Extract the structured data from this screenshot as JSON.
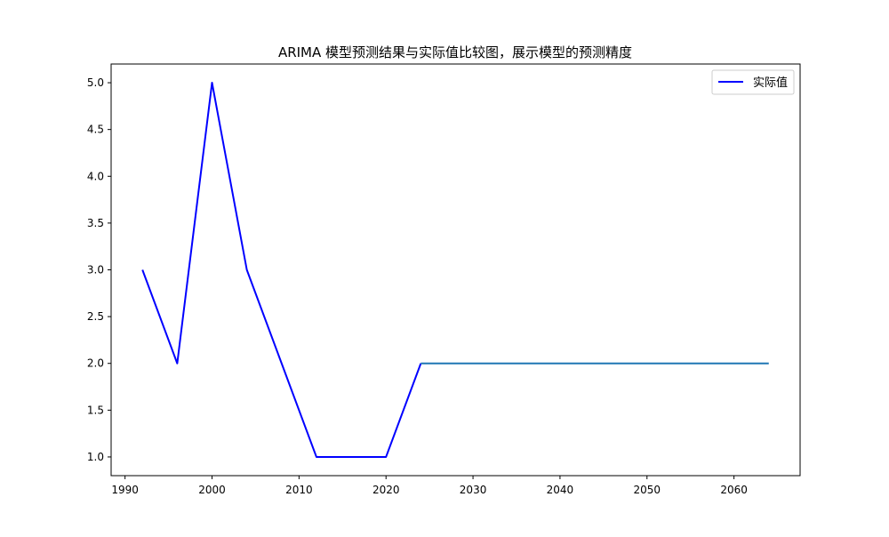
{
  "chart_data": {
    "type": "line",
    "title": "ARIMA 模型预测结果与实际值比较图，展示模型的预测精度",
    "xlabel": "",
    "ylabel": "",
    "xlim": [
      1988.4,
      2067.6
    ],
    "ylim": [
      0.8,
      5.2
    ],
    "x_ticks": [
      "1990",
      "2000",
      "2010",
      "2020",
      "2030",
      "2040",
      "2050",
      "2060"
    ],
    "y_ticks": [
      "1.0",
      "1.5",
      "2.0",
      "2.5",
      "3.0",
      "3.5",
      "4.0",
      "4.5",
      "5.0"
    ],
    "legend_position": "top-right",
    "grid": false,
    "series": [
      {
        "name": "实际值",
        "color": "#0000ff",
        "x": [
          1992,
          1996,
          2000,
          2004,
          2008,
          2012,
          2016,
          2020,
          2024
        ],
        "y": [
          3.0,
          2.0,
          5.0,
          3.0,
          2.0,
          1.0,
          1.0,
          1.0,
          2.0
        ]
      },
      {
        "color": "#1f77b4",
        "x": [
          2024,
          2064
        ],
        "y": [
          2.0,
          2.0
        ]
      }
    ]
  }
}
